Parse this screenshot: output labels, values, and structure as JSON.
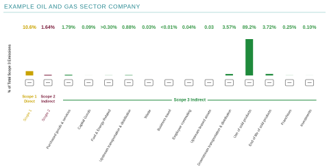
{
  "chart_data": {
    "type": "bar",
    "title": "EXAMPLE OIL AND GAS SECTOR COMPANY",
    "y_label": "% of Total Scope 3 Emissions",
    "categories": [
      "Scope 1",
      "Scope 2",
      "Purchased goods & services",
      "Capital Goods",
      "Fuel & Energy-Related",
      "Upstream transportation & distribution",
      "Waste",
      "Business travel",
      "Employee commuting",
      "Upstream leased assets",
      "Downstream transportation & distribution",
      "Use of sold products",
      "End of life of sold products",
      "Franchises",
      "Investments"
    ],
    "values": [
      10.6,
      1.64,
      1.79,
      0.09,
      0.3,
      0.88,
      0.03,
      0.01,
      0.04,
      0.03,
      3.57,
      89.2,
      3.72,
      0.25,
      0.1
    ],
    "value_labels": [
      "10.6%",
      "1.64%",
      "1.79%",
      "0.09%",
      ">0.30%",
      "0.88%",
      "0.03%",
      "<0.01%",
      "0.04%",
      "0.03",
      "3.57%",
      "89.2%",
      "3.72%",
      "0.25%",
      "0.10%"
    ],
    "colors": [
      "#c9a300",
      "#7b1d3c",
      "#1f8a3c",
      "#1f8a3c",
      "#1f8a3c",
      "#1f8a3c",
      "#1f8a3c",
      "#1f8a3c",
      "#1f8a3c",
      "#1f8a3c",
      "#1f8a3c",
      "#1f8a3c",
      "#1f8a3c",
      "#1f8a3c",
      "#1f8a3c"
    ],
    "groups": [
      {
        "lines": [
          "Scope 1",
          "Direct"
        ],
        "color": "#c9a300"
      },
      {
        "lines": [
          "Scope 2",
          "Indirect"
        ],
        "color": "#7b1d3c"
      },
      {
        "lines": [
          "Scope 3 Indirect"
        ],
        "color": "#1f8a3c"
      }
    ]
  }
}
